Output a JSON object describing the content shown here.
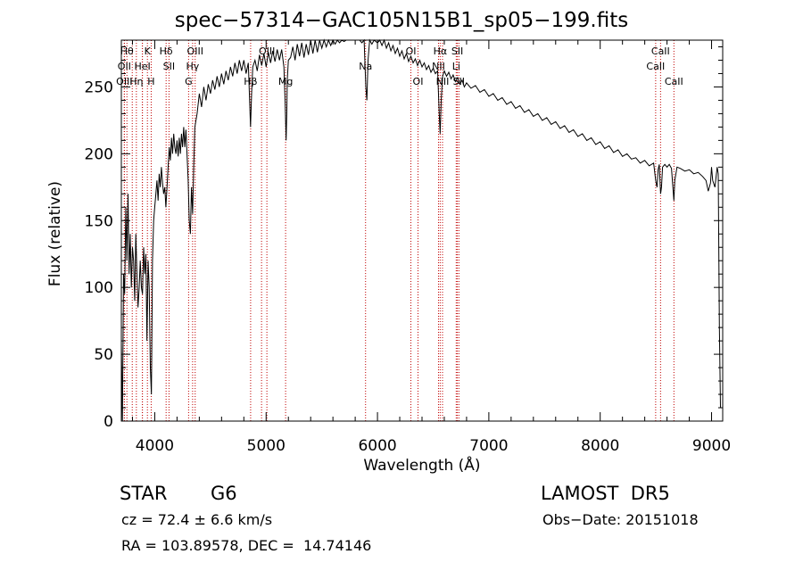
{
  "chart_data": {
    "type": "line",
    "title": "spec−57314−GAC105N15B1_sp05−199.fits",
    "xlabel": "Wavelength (Å)",
    "ylabel": "Flux (relative)",
    "xlim": [
      3700,
      9100
    ],
    "ylim": [
      0,
      285
    ],
    "x_ticks": [
      4000,
      5000,
      6000,
      7000,
      8000,
      9000
    ],
    "y_ticks": [
      0,
      50,
      100,
      150,
      200,
      250
    ],
    "grid": false,
    "series": [
      {
        "color": "#000000",
        "points": [
          [
            3700,
            60
          ],
          [
            3710,
            0
          ],
          [
            3720,
            110
          ],
          [
            3730,
            95
          ],
          [
            3740,
            160
          ],
          [
            3750,
            120
          ],
          [
            3760,
            170
          ],
          [
            3770,
            110
          ],
          [
            3780,
            140
          ],
          [
            3790,
            100
          ],
          [
            3800,
            130
          ],
          [
            3810,
            120
          ],
          [
            3820,
            90
          ],
          [
            3830,
            140
          ],
          [
            3840,
            110
          ],
          [
            3850,
            85
          ],
          [
            3860,
            100
          ],
          [
            3870,
            120
          ],
          [
            3880,
            100
          ],
          [
            3890,
            95
          ],
          [
            3900,
            130
          ],
          [
            3910,
            110
          ],
          [
            3920,
            125
          ],
          [
            3930,
            60
          ],
          [
            3940,
            120
          ],
          [
            3950,
            100
          ],
          [
            3960,
            40
          ],
          [
            3970,
            20
          ],
          [
            3980,
            120
          ],
          [
            3990,
            150
          ],
          [
            4000,
            160
          ],
          [
            4010,
            170
          ],
          [
            4020,
            180
          ],
          [
            4030,
            165
          ],
          [
            4040,
            185
          ],
          [
            4050,
            175
          ],
          [
            4060,
            190
          ],
          [
            4070,
            178
          ],
          [
            4080,
            170
          ],
          [
            4090,
            175
          ],
          [
            4100,
            160
          ],
          [
            4110,
            175
          ],
          [
            4120,
            190
          ],
          [
            4130,
            205
          ],
          [
            4140,
            195
          ],
          [
            4150,
            212
          ],
          [
            4160,
            200
          ],
          [
            4170,
            215
          ],
          [
            4180,
            205
          ],
          [
            4190,
            200
          ],
          [
            4200,
            210
          ],
          [
            4210,
            198
          ],
          [
            4220,
            212
          ],
          [
            4230,
            200
          ],
          [
            4240,
            215
          ],
          [
            4250,
            205
          ],
          [
            4260,
            220
          ],
          [
            4270,
            205
          ],
          [
            4280,
            218
          ],
          [
            4290,
            200
          ],
          [
            4300,
            180
          ],
          [
            4310,
            150
          ],
          [
            4320,
            140
          ],
          [
            4330,
            175
          ],
          [
            4340,
            155
          ],
          [
            4350,
            190
          ],
          [
            4360,
            220
          ],
          [
            4380,
            230
          ],
          [
            4400,
            245
          ],
          [
            4420,
            235
          ],
          [
            4440,
            250
          ],
          [
            4460,
            240
          ],
          [
            4480,
            252
          ],
          [
            4500,
            245
          ],
          [
            4520,
            255
          ],
          [
            4540,
            248
          ],
          [
            4560,
            258
          ],
          [
            4580,
            250
          ],
          [
            4600,
            260
          ],
          [
            4620,
            252
          ],
          [
            4640,
            262
          ],
          [
            4660,
            255
          ],
          [
            4680,
            265
          ],
          [
            4700,
            258
          ],
          [
            4720,
            268
          ],
          [
            4740,
            260
          ],
          [
            4760,
            270
          ],
          [
            4780,
            262
          ],
          [
            4800,
            270
          ],
          [
            4820,
            260
          ],
          [
            4840,
            268
          ],
          [
            4860,
            220
          ],
          [
            4870,
            245
          ],
          [
            4880,
            265
          ],
          [
            4900,
            270
          ],
          [
            4920,
            262
          ],
          [
            4940,
            274
          ],
          [
            4960,
            266
          ],
          [
            4980,
            275
          ],
          [
            5000,
            265
          ],
          [
            5020,
            276
          ],
          [
            5040,
            268
          ],
          [
            5060,
            277
          ],
          [
            5080,
            269
          ],
          [
            5100,
            278
          ],
          [
            5120,
            270
          ],
          [
            5140,
            278
          ],
          [
            5160,
            265
          ],
          [
            5170,
            240
          ],
          [
            5180,
            210
          ],
          [
            5185,
            230
          ],
          [
            5190,
            255
          ],
          [
            5200,
            270
          ],
          [
            5220,
            272
          ],
          [
            5240,
            280
          ],
          [
            5260,
            270
          ],
          [
            5280,
            282
          ],
          [
            5300,
            273
          ],
          [
            5320,
            283
          ],
          [
            5340,
            272
          ],
          [
            5360,
            282
          ],
          [
            5380,
            274
          ],
          [
            5400,
            285
          ],
          [
            5420,
            275
          ],
          [
            5440,
            286
          ],
          [
            5460,
            276
          ],
          [
            5480,
            288
          ],
          [
            5500,
            279
          ],
          [
            5520,
            289
          ],
          [
            5540,
            280
          ],
          [
            5560,
            290
          ],
          [
            5580,
            281
          ],
          [
            5600,
            291
          ],
          [
            5620,
            282
          ],
          [
            5640,
            291
          ],
          [
            5660,
            283
          ],
          [
            5680,
            292
          ],
          [
            5700,
            284
          ],
          [
            5720,
            292
          ],
          [
            5740,
            285
          ],
          [
            5760,
            293
          ],
          [
            5780,
            286
          ],
          [
            5800,
            292
          ],
          [
            5820,
            285
          ],
          [
            5840,
            291
          ],
          [
            5860,
            283
          ],
          [
            5880,
            285
          ],
          [
            5895,
            250
          ],
          [
            5905,
            240
          ],
          [
            5915,
            270
          ],
          [
            5930,
            285
          ],
          [
            5950,
            282
          ],
          [
            5970,
            288
          ],
          [
            6000,
            283
          ],
          [
            6020,
            287
          ],
          [
            6040,
            281
          ],
          [
            6060,
            285
          ],
          [
            6080,
            279
          ],
          [
            6100,
            283
          ],
          [
            6120,
            277
          ],
          [
            6140,
            281
          ],
          [
            6160,
            275
          ],
          [
            6180,
            279
          ],
          [
            6200,
            273
          ],
          [
            6220,
            277
          ],
          [
            6240,
            271
          ],
          [
            6260,
            275
          ],
          [
            6280,
            269
          ],
          [
            6300,
            273
          ],
          [
            6320,
            268
          ],
          [
            6340,
            271
          ],
          [
            6360,
            266
          ],
          [
            6380,
            270
          ],
          [
            6400,
            265
          ],
          [
            6420,
            268
          ],
          [
            6440,
            263
          ],
          [
            6460,
            266
          ],
          [
            6480,
            261
          ],
          [
            6500,
            264
          ],
          [
            6520,
            260
          ],
          [
            6540,
            262
          ],
          [
            6555,
            230
          ],
          [
            6563,
            215
          ],
          [
            6572,
            240
          ],
          [
            6585,
            258
          ],
          [
            6600,
            262
          ],
          [
            6620,
            258
          ],
          [
            6640,
            261
          ],
          [
            6660,
            256
          ],
          [
            6680,
            259
          ],
          [
            6700,
            254
          ],
          [
            6720,
            257
          ],
          [
            6740,
            252
          ],
          [
            6760,
            255
          ],
          [
            6780,
            250
          ],
          [
            6800,
            253
          ],
          [
            6840,
            249
          ],
          [
            6880,
            251
          ],
          [
            6920,
            246
          ],
          [
            6960,
            248
          ],
          [
            7000,
            243
          ],
          [
            7040,
            245
          ],
          [
            7080,
            240
          ],
          [
            7120,
            242
          ],
          [
            7160,
            237
          ],
          [
            7200,
            239
          ],
          [
            7240,
            234
          ],
          [
            7280,
            236
          ],
          [
            7320,
            231
          ],
          [
            7360,
            233
          ],
          [
            7400,
            228
          ],
          [
            7440,
            230
          ],
          [
            7480,
            225
          ],
          [
            7520,
            227
          ],
          [
            7560,
            222
          ],
          [
            7600,
            224
          ],
          [
            7640,
            219
          ],
          [
            7680,
            221
          ],
          [
            7720,
            216
          ],
          [
            7760,
            218
          ],
          [
            7800,
            213
          ],
          [
            7840,
            215
          ],
          [
            7880,
            210
          ],
          [
            7920,
            212
          ],
          [
            7960,
            207
          ],
          [
            8000,
            209
          ],
          [
            8040,
            204
          ],
          [
            8080,
            206
          ],
          [
            8120,
            201
          ],
          [
            8160,
            203
          ],
          [
            8200,
            198
          ],
          [
            8240,
            200
          ],
          [
            8280,
            196
          ],
          [
            8320,
            197
          ],
          [
            8360,
            193
          ],
          [
            8400,
            195
          ],
          [
            8440,
            191
          ],
          [
            8480,
            193
          ],
          [
            8498,
            180
          ],
          [
            8510,
            175
          ],
          [
            8520,
            188
          ],
          [
            8530,
            192
          ],
          [
            8542,
            170
          ],
          [
            8550,
            175
          ],
          [
            8560,
            190
          ],
          [
            8580,
            192
          ],
          [
            8600,
            190
          ],
          [
            8620,
            192
          ],
          [
            8640,
            189
          ],
          [
            8662,
            165
          ],
          [
            8670,
            180
          ],
          [
            8690,
            190
          ],
          [
            8720,
            189
          ],
          [
            8760,
            187
          ],
          [
            8800,
            188
          ],
          [
            8840,
            185
          ],
          [
            8880,
            186
          ],
          [
            8920,
            183
          ],
          [
            8950,
            180
          ],
          [
            8970,
            172
          ],
          [
            8990,
            178
          ],
          [
            9000,
            190
          ],
          [
            9010,
            180
          ],
          [
            9030,
            175
          ],
          [
            9050,
            190
          ],
          [
            9060,
            185
          ],
          [
            9070,
            70
          ],
          [
            9080,
            10
          ]
        ]
      }
    ],
    "line_markers": [
      {
        "x": 3750,
        "label": "Hθ",
        "row": 0
      },
      {
        "x": 3727,
        "label": "OII",
        "row": 1
      },
      {
        "x": 3727,
        "label": "OIII",
        "row": 2
      },
      {
        "x": 3798,
        "label": "",
        "row": 0
      },
      {
        "x": 3835,
        "label": "Hη",
        "row": 2
      },
      {
        "x": 3889,
        "label": "",
        "row": 0
      },
      {
        "x": 3934,
        "label": "K",
        "row": 0
      },
      {
        "x": 3968,
        "label": "H",
        "row": 2
      },
      {
        "x": 3889,
        "label": "HeI",
        "row": 1
      },
      {
        "x": 4102,
        "label": "Hδ",
        "row": 0
      },
      {
        "x": 4128,
        "label": "SII",
        "row": 1
      },
      {
        "x": 4304,
        "label": "G",
        "row": 2
      },
      {
        "x": 4340,
        "label": "Hγ",
        "row": 1
      },
      {
        "x": 4363,
        "label": "OIII",
        "row": 0
      },
      {
        "x": 4861,
        "label": "Hβ",
        "row": 2
      },
      {
        "x": 4959,
        "label": "",
        "row": 0
      },
      {
        "x": 5007,
        "label": "OIII",
        "row": 0
      },
      {
        "x": 5175,
        "label": "Mg",
        "row": 2
      },
      {
        "x": 5893,
        "label": "Na",
        "row": 1
      },
      {
        "x": 6300,
        "label": "OI",
        "row": 0
      },
      {
        "x": 6364,
        "label": "OI",
        "row": 2
      },
      {
        "x": 6548,
        "label": "NII",
        "row": 1
      },
      {
        "x": 6563,
        "label": "Hα",
        "row": 0
      },
      {
        "x": 6584,
        "label": "NII",
        "row": 2
      },
      {
        "x": 6707,
        "label": "Li",
        "row": 1
      },
      {
        "x": 6717,
        "label": "SII",
        "row": 0
      },
      {
        "x": 6731,
        "label": "SII",
        "row": 2
      },
      {
        "x": 8498,
        "label": "CaII",
        "row": 1
      },
      {
        "x": 8542,
        "label": "CaII",
        "row": 0
      },
      {
        "x": 8662,
        "label": "CaII",
        "row": 2
      }
    ]
  },
  "info": {
    "object_class": "STAR",
    "subclass": "G6",
    "survey": "LAMOST  DR5",
    "redshift": "cz = 72.4 ± 6.6 km/s",
    "obs_date": "Obs−Date: 20151018",
    "coords": "RA = 103.89578, DEC =  14.74146"
  }
}
